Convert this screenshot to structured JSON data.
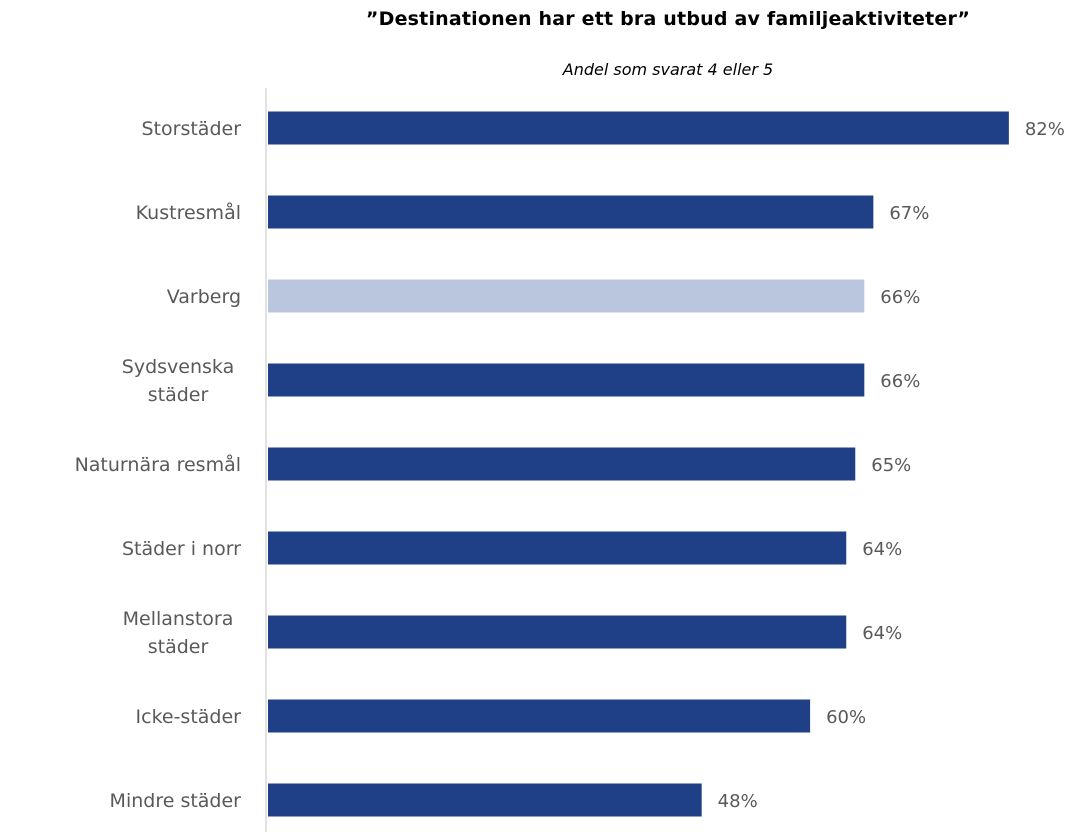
{
  "chart_data": {
    "type": "bar",
    "orientation": "horizontal",
    "title": "”Destinationen har ett bra utbud av familjeaktiviteter”",
    "subtitle": "Andel som svarat 4 eller 5",
    "categories": [
      [
        "Storstäder"
      ],
      [
        "Kustresmål"
      ],
      [
        "Varberg"
      ],
      [
        "Sydsvenska",
        "städer"
      ],
      [
        "Naturnära resmål"
      ],
      [
        "Städer i norr"
      ],
      [
        "Mellanstora",
        "städer"
      ],
      [
        "Icke-städer"
      ],
      [
        "Mindre städer"
      ]
    ],
    "values": [
      82,
      67,
      66,
      66,
      65,
      64,
      64,
      60,
      48
    ],
    "value_labels": [
      "82%",
      "67%",
      "66%",
      "66%",
      "65%",
      "64%",
      "64%",
      "60%",
      "48%"
    ],
    "unit": "%",
    "xlim": [
      0,
      82
    ],
    "grid": false,
    "legend": "none",
    "colors": {
      "default": "#1f3f86",
      "highlight": "#b9c6dd",
      "axis": "#d9d9d9"
    },
    "highlight_category": "Varberg"
  }
}
